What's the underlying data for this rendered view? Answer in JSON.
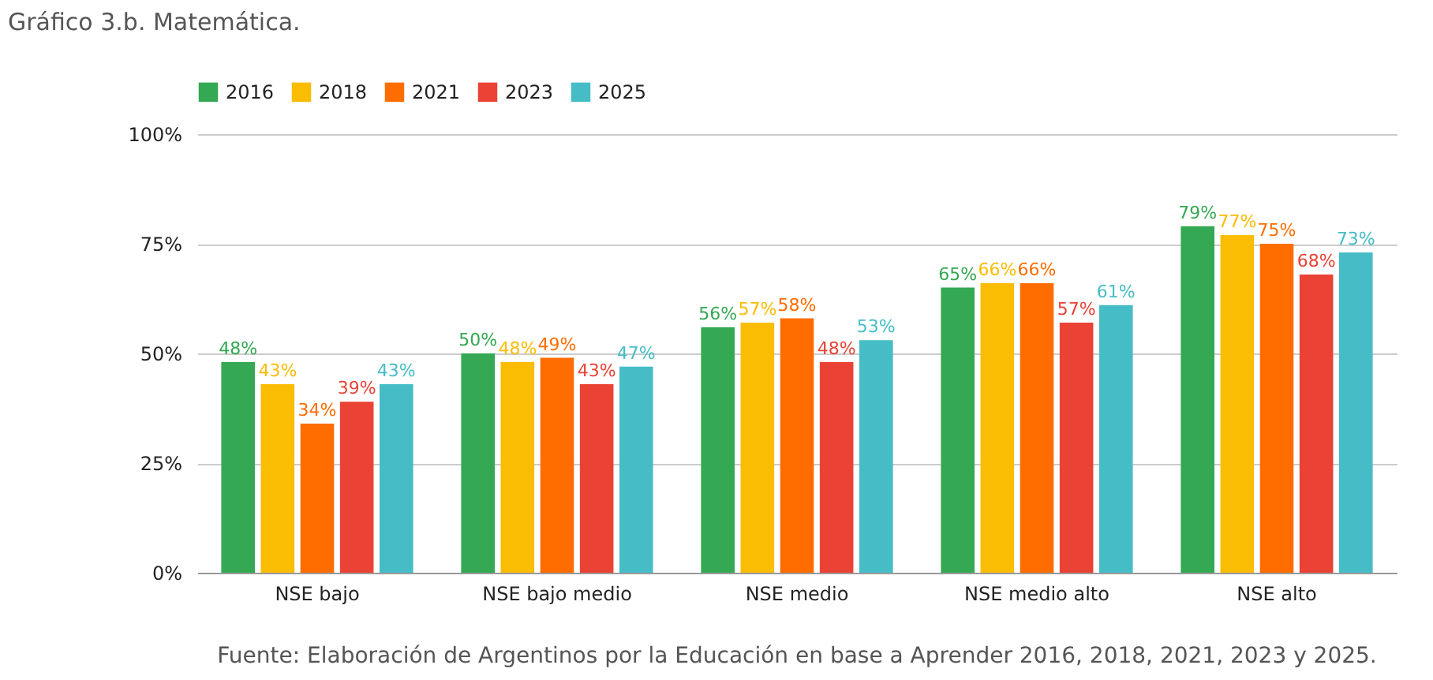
{
  "chart_data": {
    "type": "bar",
    "title": "Gráfico 3.b. Matemática.",
    "categories": [
      "NSE bajo",
      "NSE bajo medio",
      "NSE medio",
      "NSE medio alto",
      "NSE alto"
    ],
    "series": [
      {
        "name": "2016",
        "color": "#34a853",
        "values": [
          48,
          50,
          56,
          65,
          79
        ],
        "value_labels": [
          "48%",
          "50%",
          "56%",
          "65%",
          "79%"
        ]
      },
      {
        "name": "2018",
        "color": "#fbbc04",
        "values": [
          43,
          48,
          57,
          66,
          77
        ],
        "value_labels": [
          "43%",
          "48%",
          "57%",
          "66%",
          "77%"
        ]
      },
      {
        "name": "2021",
        "color": "#ff6d01",
        "values": [
          34,
          49,
          58,
          66,
          75
        ],
        "value_labels": [
          "34%",
          "49%",
          "58%",
          "66%",
          "75%"
        ]
      },
      {
        "name": "2023",
        "color": "#ea4335",
        "values": [
          39,
          43,
          48,
          57,
          68
        ],
        "value_labels": [
          "39%",
          "43%",
          "48%",
          "57%",
          "68%"
        ]
      },
      {
        "name": "2025",
        "color": "#46bdc6",
        "values": [
          43,
          47,
          53,
          61,
          73
        ],
        "value_labels": [
          "43%",
          "47%",
          "53%",
          "61%",
          "73%"
        ]
      }
    ],
    "ylim": [
      0,
      100
    ],
    "yticks": [
      {
        "value": 0,
        "label": "0%"
      },
      {
        "value": 25,
        "label": "25%"
      },
      {
        "value": 50,
        "label": "50%"
      },
      {
        "value": 75,
        "label": "75%"
      },
      {
        "value": 100,
        "label": "100%"
      }
    ],
    "grid": "y",
    "legend": "top",
    "annotations": [
      "Fuente: Elaboración de Argentinos por la Educación en base a Aprender 2016, 2018, 2021, 2023 y 2025."
    ]
  }
}
